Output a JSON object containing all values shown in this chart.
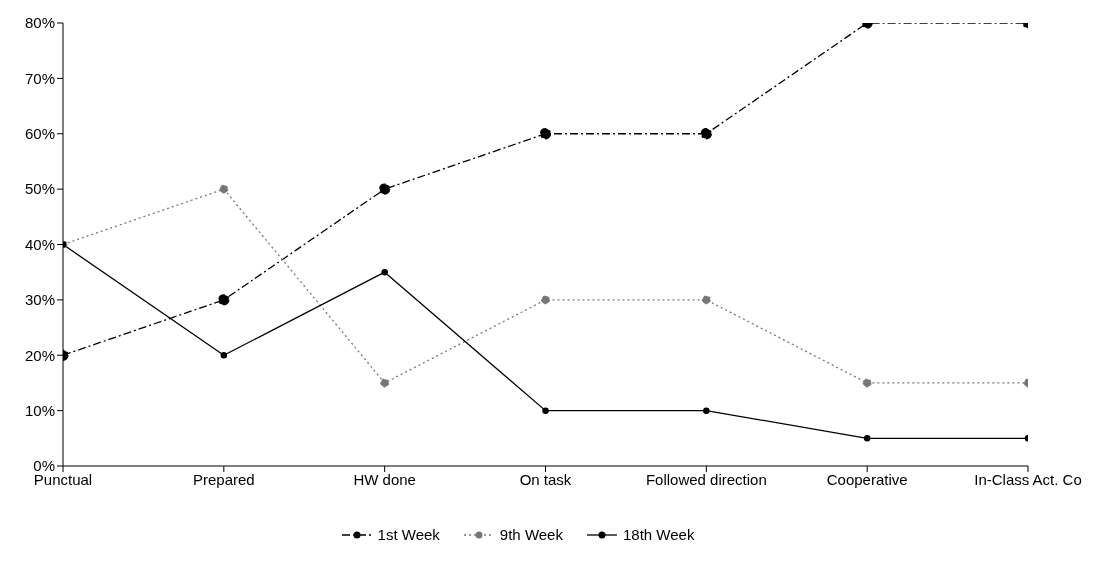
{
  "chart_data": {
    "type": "line",
    "categories": [
      "Punctual",
      "Prepared",
      "HW done",
      "On task",
      "Followed direction",
      "Cooperative",
      "In-Class Act. Co"
    ],
    "series": [
      {
        "name": "1st Week",
        "color": "#000000",
        "values": [
          20,
          30,
          50,
          60,
          60,
          80,
          80
        ],
        "line_style": "dashed"
      },
      {
        "name": "9th Week",
        "color": "#777777",
        "values": [
          40,
          50,
          15,
          30,
          30,
          15,
          15
        ],
        "line_style": "dotted"
      },
      {
        "name": "18th Week",
        "color": "#000000",
        "values": [
          40,
          20,
          35,
          10,
          10,
          5,
          5
        ],
        "line_style": "solid"
      }
    ],
    "ylim": [
      0,
      80
    ],
    "yticks": [
      {
        "value": 0,
        "label": "0%"
      },
      {
        "value": 10,
        "label": "10%"
      },
      {
        "value": 20,
        "label": "20%"
      },
      {
        "value": 30,
        "label": "30%"
      },
      {
        "value": 40,
        "label": "40%"
      },
      {
        "value": 50,
        "label": "50%"
      },
      {
        "value": 60,
        "label": "60%"
      },
      {
        "value": 70,
        "label": "70%"
      },
      {
        "value": 80,
        "label": "80%"
      }
    ],
    "grid": false,
    "legend": "bottom",
    "marker": "circle"
  }
}
